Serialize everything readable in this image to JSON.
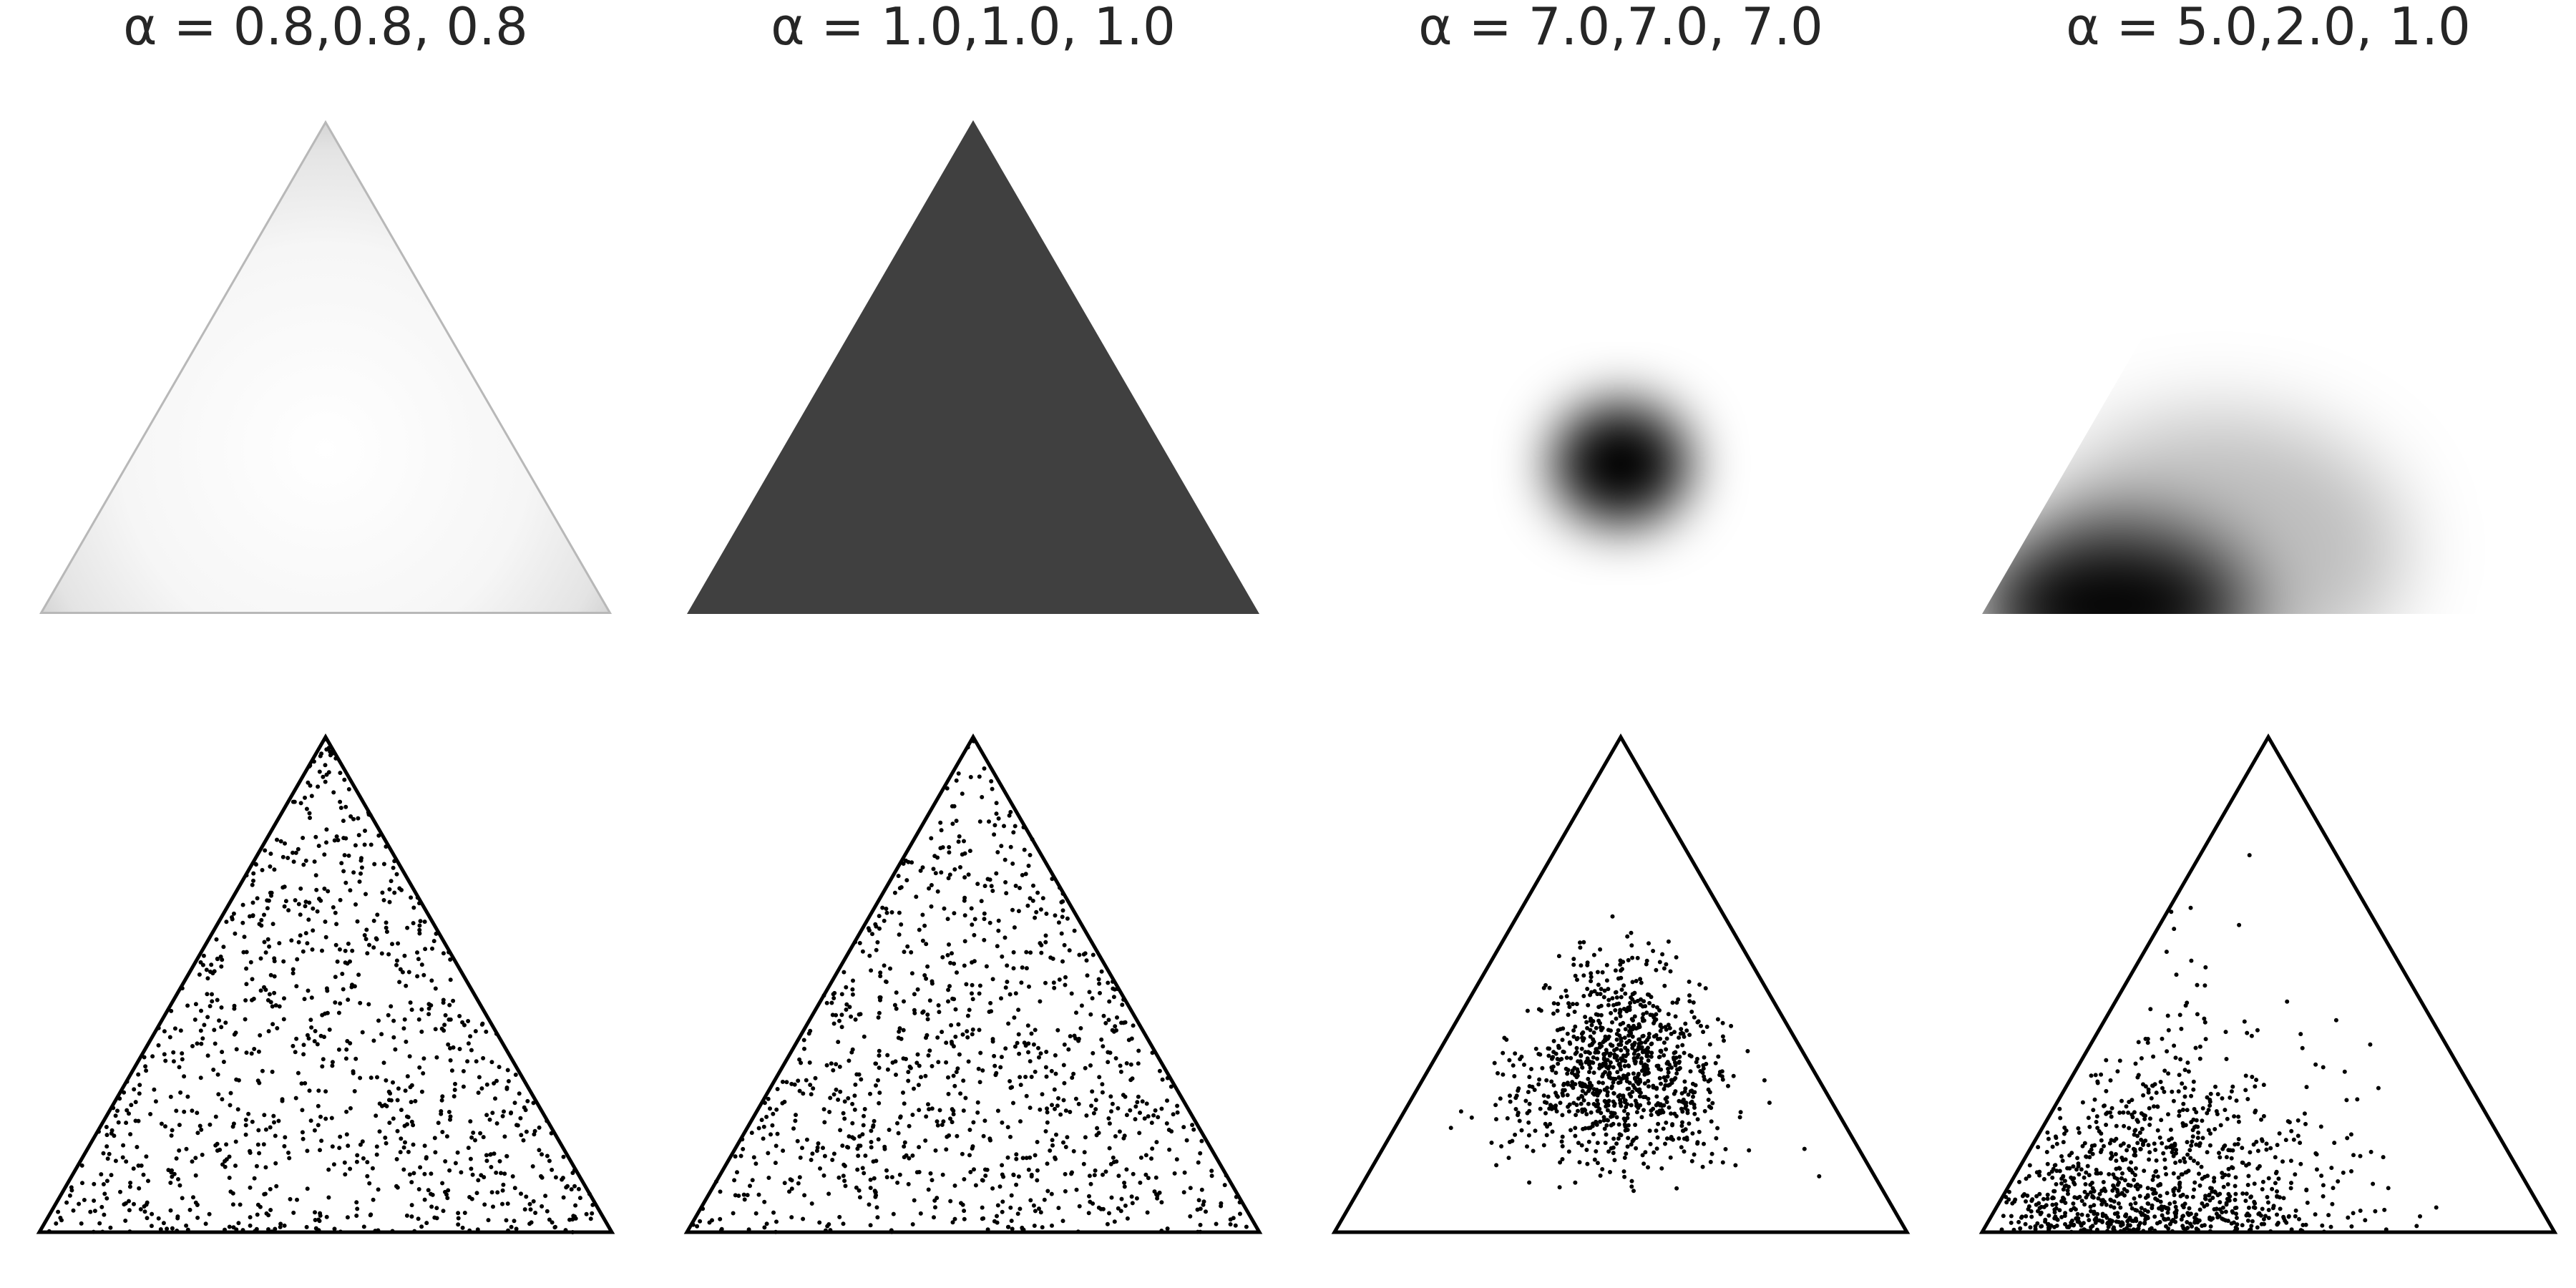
{
  "figure": {
    "title_prefix": "α = "
  },
  "chart_data": [
    {
      "type": "heatmap",
      "panel": "density",
      "title": "α = 0.8,0.8, 0.8",
      "alpha": [
        0.8,
        0.8,
        0.8
      ],
      "colormap": "gray_r",
      "axis": "off",
      "note": "Dirichlet density on the 2-simplex; mostly light gray with darker rim toward the edges"
    },
    {
      "type": "heatmap",
      "panel": "density",
      "title": "α = 1.0,1.0, 1.0",
      "alpha": [
        1.0,
        1.0,
        1.0
      ],
      "colormap": "gray_r",
      "axis": "off",
      "note": "Uniform density over the simplex (flat dark gray)"
    },
    {
      "type": "heatmap",
      "panel": "density",
      "title": "α = 7.0,7.0, 7.0",
      "alpha": [
        7.0,
        7.0,
        7.0
      ],
      "colormap": "gray_r",
      "axis": "off",
      "note": "Density concentrated near the centroid"
    },
    {
      "type": "heatmap",
      "panel": "density",
      "title": "α = 5.0,2.0, 1.0",
      "alpha": [
        5.0,
        2.0,
        1.0
      ],
      "colormap": "gray_r",
      "axis": "off",
      "note": "Density concentrated toward the lower-left corner"
    },
    {
      "type": "scatter",
      "panel": "samples",
      "alpha": [
        0.8,
        0.8,
        0.8
      ],
      "n_points": 1000,
      "marker_color": "#000000",
      "note": "Dirichlet samples projected on the triangle; spread everywhere, denser near edges"
    },
    {
      "type": "scatter",
      "panel": "samples",
      "alpha": [
        1.0,
        1.0,
        1.0
      ],
      "n_points": 1000,
      "marker_color": "#000000",
      "note": "Uniform spread over the triangle"
    },
    {
      "type": "scatter",
      "panel": "samples",
      "alpha": [
        7.0,
        7.0,
        7.0
      ],
      "n_points": 1000,
      "marker_color": "#000000",
      "note": "Compact cloud around the centroid"
    },
    {
      "type": "scatter",
      "panel": "samples",
      "alpha": [
        5.0,
        2.0,
        1.0
      ],
      "n_points": 1000,
      "marker_color": "#000000",
      "note": "Cloud concentrated in the lower-left region"
    }
  ],
  "colors": {
    "outline": "#000000",
    "points": "#000000",
    "text": "#262626",
    "uniform_fill": "#404040"
  }
}
